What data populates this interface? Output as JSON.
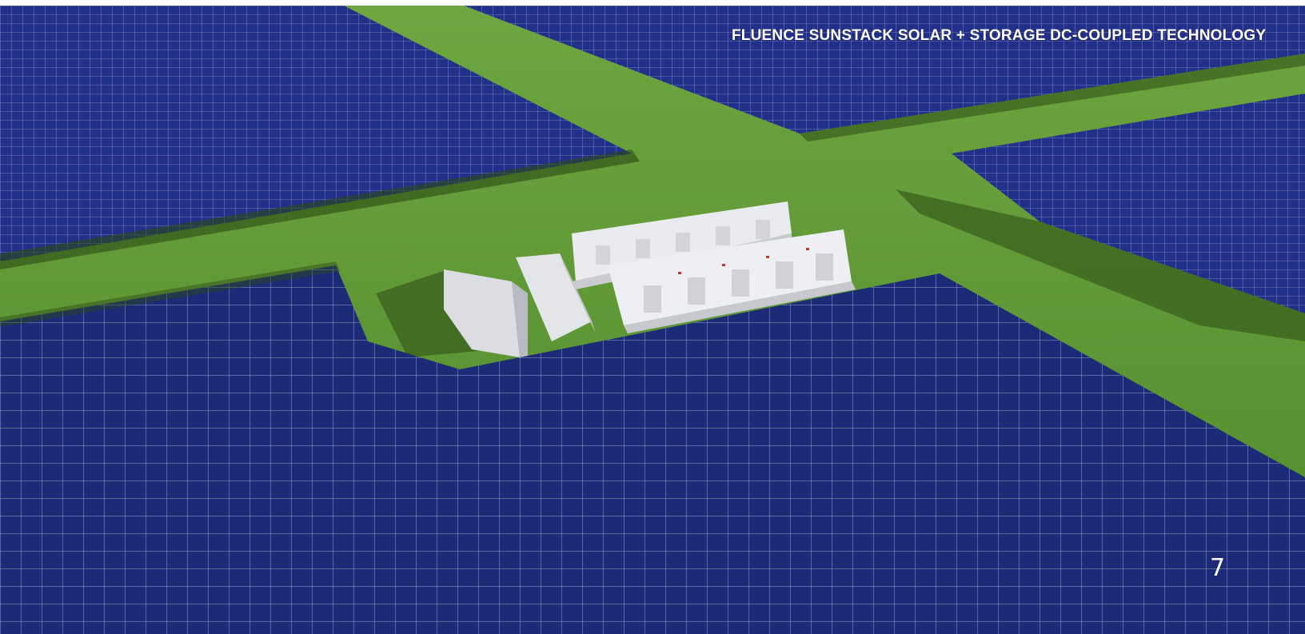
{
  "slide": {
    "title": "FLUENCE SUNSTACK SOLAR + STORAGE DC-COUPLED TECHNOLOGY",
    "page_number": "7"
  },
  "scene": {
    "description_icons": [
      "solar-panel-array",
      "battery-storage-container",
      "inverter-skid",
      "transformer"
    ],
    "colors": {
      "panel": "#1c2a78",
      "panel_grid": "#c8cce6",
      "grass": "#5f9a34",
      "shadow": "#2c4a14",
      "container": "#e8e9ec"
    }
  }
}
